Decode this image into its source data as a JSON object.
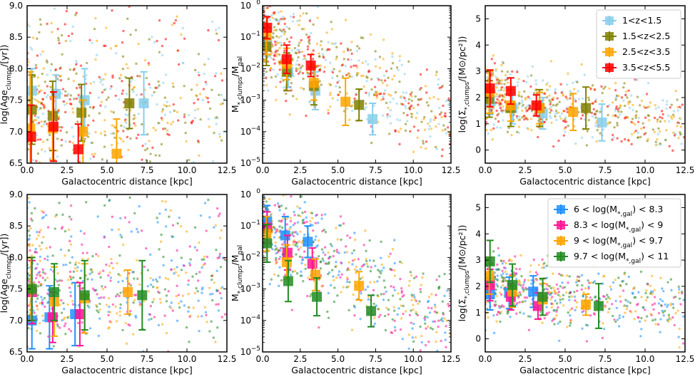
{
  "chart_data": [
    {
      "id": "p1",
      "type": "scatter",
      "xlabel": "Galactocentric distance [kpc]",
      "ylabel": {
        "main": "log(Age",
        "sub": "clumps",
        "tail": "/[yr])"
      },
      "xlim": [
        0,
        12.5
      ],
      "ylim": [
        6.5,
        9.0
      ],
      "yscale": "linear",
      "xticks": [
        0.0,
        2.5,
        5.0,
        7.5,
        10.0,
        12.5
      ],
      "xtick_labels": [
        "0.0",
        "2.5",
        "5.0",
        "7.5",
        "10.0",
        "12.5"
      ],
      "yticks": [
        6.5,
        7.0,
        7.5,
        8.0,
        8.5,
        9.0
      ],
      "ytick_labels": [
        "6.5",
        "7.0",
        "7.5",
        "8.0",
        "8.5",
        "9.0"
      ],
      "series": [
        {
          "color": "#87CEEB",
          "points": [
            [
              0.3,
              7.65,
              0.35
            ],
            [
              1.8,
              7.6,
              0.3
            ],
            [
              3.6,
              7.5,
              0.5
            ],
            [
              7.3,
              7.45,
              0.5
            ]
          ]
        },
        {
          "color": "#808000",
          "points": [
            [
              0.3,
              7.35,
              0.55
            ],
            [
              1.6,
              7.25,
              0.55
            ],
            [
              3.4,
              7.3,
              0.45
            ],
            [
              6.4,
              7.45,
              0.4
            ]
          ]
        },
        {
          "color": "#FFA500",
          "points": [
            [
              0.2,
              7.05,
              0.9
            ],
            [
              1.6,
              7.05,
              0.5
            ],
            [
              3.5,
              7.0,
              0.5
            ],
            [
              5.6,
              6.65,
              0.55
            ]
          ]
        },
        {
          "color": "#FF0000",
          "points": [
            [
              0.25,
              6.92,
              0.5
            ],
            [
              1.65,
              7.08,
              0.55
            ],
            [
              3.2,
              6.72,
              0.4
            ]
          ]
        }
      ]
    },
    {
      "id": "p2",
      "type": "scatter",
      "xlabel": "Galactocentric distance [kpc]",
      "ylabel": {
        "main": "M",
        "sub": "*,clumps",
        "tail": "/M",
        "sub2": "gal"
      },
      "xlim": [
        0,
        12.5
      ],
      "ylim": [
        -5,
        0
      ],
      "yscale": "log",
      "xticks": [
        0.0,
        2.5,
        5.0,
        7.5,
        10.0,
        12.5
      ],
      "xtick_labels": [
        "0.0",
        "2.5",
        "5.0",
        "7.5",
        "10.0",
        "12.5"
      ],
      "yticks": [
        -5,
        -4,
        -3,
        -2,
        -1,
        0
      ],
      "ytick_labels": [
        "10",
        "10",
        "10",
        "10",
        "10",
        "10"
      ],
      "ytick_exp": [
        "−5",
        "−4",
        "−3",
        "−2",
        "−1",
        "0"
      ],
      "series": [
        {
          "color": "#87CEEB",
          "points": [
            [
              0.3,
              -1.2,
              0.4
            ],
            [
              1.7,
              -2.1,
              0.5
            ],
            [
              3.5,
              -2.7,
              0.6
            ],
            [
              7.3,
              -3.6,
              0.5
            ]
          ]
        },
        {
          "color": "#808000",
          "points": [
            [
              0.25,
              -1.3,
              0.6
            ],
            [
              1.6,
              -2.1,
              0.6
            ],
            [
              3.4,
              -2.55,
              0.6
            ],
            [
              6.4,
              -3.15,
              0.5
            ]
          ]
        },
        {
          "color": "#FFA500",
          "points": [
            [
              0.25,
              -0.95,
              0.6
            ],
            [
              1.6,
              -1.85,
              0.5
            ],
            [
              3.4,
              -2.45,
              0.55
            ],
            [
              5.5,
              -3.05,
              0.75
            ]
          ]
        },
        {
          "color": "#FF0000",
          "points": [
            [
              0.3,
              -0.7,
              0.35
            ],
            [
              1.6,
              -1.7,
              0.45
            ],
            [
              3.2,
              -1.9,
              0.35
            ]
          ]
        }
      ]
    },
    {
      "id": "p3",
      "type": "scatter",
      "xlabel": "Galactocentric distance [kpc]",
      "ylabel": {
        "main": "log(Σ",
        "sub": "*,clumps",
        "tail": "/[M⊙/pc²])"
      },
      "xlim": [
        0,
        12.5
      ],
      "ylim": [
        -0.5,
        5.5
      ],
      "yscale": "linear",
      "xticks": [
        0.0,
        2.5,
        5.0,
        7.5,
        10.0,
        12.5
      ],
      "xtick_labels": [
        "0.0",
        "2.5",
        "5.0",
        "7.5",
        "10.0",
        "12.5"
      ],
      "yticks": [
        0,
        1,
        2,
        3,
        4,
        5
      ],
      "ytick_labels": [
        "0",
        "1",
        "2",
        "3",
        "4",
        "5"
      ],
      "series": [
        {
          "color": "#87CEEB",
          "points": [
            [
              0.3,
              1.85,
              0.5
            ],
            [
              1.7,
              1.6,
              0.6
            ],
            [
              3.6,
              1.4,
              0.6
            ],
            [
              7.3,
              1.05,
              0.7
            ]
          ]
        },
        {
          "color": "#808000",
          "points": [
            [
              0.25,
              1.95,
              0.7
            ],
            [
              1.6,
              1.6,
              0.7
            ],
            [
              3.4,
              1.6,
              0.7
            ],
            [
              6.3,
              1.6,
              0.8
            ]
          ]
        },
        {
          "color": "#FFA500",
          "points": [
            [
              0.25,
              2.2,
              0.8
            ],
            [
              1.6,
              1.7,
              0.6
            ],
            [
              3.4,
              1.6,
              0.6
            ],
            [
              5.5,
              1.45,
              0.7
            ]
          ]
        },
        {
          "color": "#FF0000",
          "points": [
            [
              0.3,
              2.35,
              0.7
            ],
            [
              1.6,
              2.25,
              0.5
            ],
            [
              3.2,
              1.7,
              0.4
            ]
          ]
        }
      ],
      "legend": {
        "position": "top-right",
        "entries": [
          {
            "label": "1<z<1.5",
            "color": "#87CEEB"
          },
          {
            "label": "1.5<z<2.5",
            "color": "#808000"
          },
          {
            "label": "2.5<z<3.5",
            "color": "#FFA500"
          },
          {
            "label": "3.5<z<5.5",
            "color": "#FF0000"
          }
        ]
      }
    },
    {
      "id": "p4",
      "type": "scatter",
      "xlabel": "Galactocentric distance [kpc]",
      "ylabel": {
        "main": "log(Age",
        "sub": "clumps",
        "tail": "/[yr])"
      },
      "xlim": [
        0,
        12.5
      ],
      "ylim": [
        6.5,
        9.0
      ],
      "yscale": "linear",
      "xticks": [
        0.0,
        2.5,
        5.0,
        7.5,
        10.0,
        12.5
      ],
      "xtick_labels": [
        "0.0",
        "2.5",
        "5.0",
        "7.5",
        "10.0",
        "12.5"
      ],
      "yticks": [
        6.5,
        7.0,
        7.5,
        8.0,
        8.5,
        9.0
      ],
      "ytick_labels": [
        "6.5",
        "7.0",
        "7.5",
        "8.0",
        "8.5",
        "9.0"
      ],
      "series": [
        {
          "color": "#1E90FF",
          "points": [
            [
              0.3,
              7.0,
              0.45
            ],
            [
              1.4,
              7.05,
              0.5
            ],
            [
              3.0,
              7.1,
              0.5
            ]
          ]
        },
        {
          "color": "#FF1493",
          "points": [
            [
              0.3,
              7.45,
              0.5
            ],
            [
              1.6,
              7.05,
              0.4
            ],
            [
              3.3,
              7.1,
              0.5
            ]
          ]
        },
        {
          "color": "#FFA500",
          "points": [
            [
              0.25,
              7.5,
              0.5
            ],
            [
              1.7,
              7.3,
              0.55
            ],
            [
              3.6,
              7.35,
              0.55
            ],
            [
              6.3,
              7.45,
              0.35
            ]
          ]
        },
        {
          "color": "#228B22",
          "points": [
            [
              0.3,
              7.5,
              0.5
            ],
            [
              1.7,
              7.45,
              0.45
            ],
            [
              3.6,
              7.4,
              0.55
            ],
            [
              7.2,
              7.4,
              0.55
            ]
          ]
        }
      ]
    },
    {
      "id": "p5",
      "type": "scatter",
      "xlabel": "Galactocentric distance [kpc]",
      "ylabel": {
        "main": "M",
        "sub": "*,clumps",
        "tail": "/M",
        "sub2": "gal"
      },
      "xlim": [
        0,
        12.5
      ],
      "ylim": [
        -5,
        0
      ],
      "yscale": "log",
      "xticks": [
        0.0,
        2.5,
        5.0,
        7.5,
        10.0,
        12.5
      ],
      "xtick_labels": [
        "0.0",
        "2.5",
        "5.0",
        "7.5",
        "10.0",
        "12.5"
      ],
      "yticks": [
        -5,
        -4,
        -3,
        -2,
        -1,
        0
      ],
      "ytick_labels": [
        "10",
        "10",
        "10",
        "10",
        "10",
        "10"
      ],
      "ytick_exp": [
        "−5",
        "−4",
        "−3",
        "−2",
        "−1",
        "0"
      ],
      "series": [
        {
          "color": "#1E90FF",
          "points": [
            [
              0.3,
              -0.85,
              0.5
            ],
            [
              1.5,
              -1.3,
              0.6
            ],
            [
              3.0,
              -1.5,
              0.5
            ]
          ]
        },
        {
          "color": "#FF1493",
          "points": [
            [
              0.3,
              -1.05,
              0.5
            ],
            [
              1.65,
              -1.85,
              0.55
            ],
            [
              3.3,
              -2.2,
              0.5
            ]
          ]
        },
        {
          "color": "#FFA500",
          "points": [
            [
              0.25,
              -1.25,
              0.55
            ],
            [
              1.6,
              -2.15,
              0.55
            ],
            [
              3.5,
              -2.55,
              0.5
            ],
            [
              6.4,
              -2.9,
              0.45
            ]
          ]
        },
        {
          "color": "#228B22",
          "points": [
            [
              0.3,
              -1.55,
              0.6
            ],
            [
              1.7,
              -2.75,
              0.65
            ],
            [
              3.6,
              -3.25,
              0.6
            ],
            [
              7.2,
              -3.7,
              0.5
            ]
          ]
        }
      ]
    },
    {
      "id": "p6",
      "type": "scatter",
      "xlabel": "Galactocentric distance [kpc]",
      "ylabel": {
        "main": "log(Σ",
        "sub": "*,clumps",
        "tail": "/[M⊙/pc²])"
      },
      "xlim": [
        0,
        12.5
      ],
      "ylim": [
        -0.5,
        5.5
      ],
      "yscale": "linear",
      "xticks": [
        0.0,
        2.5,
        5.0,
        7.5,
        10.0,
        12.5
      ],
      "xtick_labels": [
        "0.0",
        "2.5",
        "5.0",
        "7.5",
        "10.0",
        "12.5"
      ],
      "yticks": [
        0,
        1,
        2,
        3,
        4,
        5
      ],
      "ytick_labels": [
        "0",
        "1",
        "2",
        "3",
        "4",
        "5"
      ],
      "series": [
        {
          "color": "#1E90FF",
          "points": [
            [
              0.3,
              1.7,
              0.6
            ],
            [
              1.5,
              1.75,
              0.6
            ],
            [
              3.0,
              1.8,
              0.6
            ]
          ]
        },
        {
          "color": "#FF1493",
          "points": [
            [
              0.3,
              2.05,
              0.6
            ],
            [
              1.6,
              1.6,
              0.5
            ],
            [
              3.3,
              1.25,
              0.5
            ]
          ]
        },
        {
          "color": "#FFA500",
          "points": [
            [
              0.25,
              2.4,
              0.7
            ],
            [
              1.7,
              1.8,
              0.6
            ],
            [
              3.6,
              1.5,
              0.6
            ],
            [
              6.3,
              1.3,
              0.4
            ]
          ]
        },
        {
          "color": "#228B22",
          "points": [
            [
              0.3,
              2.95,
              0.8
            ],
            [
              1.7,
              2.05,
              0.8
            ],
            [
              3.6,
              1.6,
              0.7
            ],
            [
              7.1,
              1.25,
              0.85
            ]
          ]
        }
      ],
      "legend": {
        "position": "top-right",
        "entries": [
          {
            "label": "6 < log(M",
            "sub": "*,gal",
            "tail": ") < 8.3",
            "color": "#1E90FF"
          },
          {
            "label": "8.3 < log(M",
            "sub": "*,gal",
            "tail": ") < 9",
            "color": "#FF1493"
          },
          {
            "label": "9 < log(M",
            "sub": "*,gal",
            "tail": ") < 9.7",
            "color": "#FFA500"
          },
          {
            "label": "9.7 < log(M",
            "sub": "*,gal",
            "tail": ") < 11",
            "color": "#228B22"
          }
        ]
      }
    }
  ]
}
